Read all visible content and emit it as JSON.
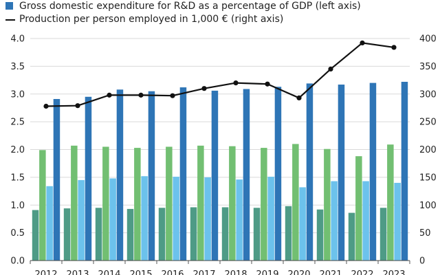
{
  "legend": [
    {
      "label": "Gross domestic expenditure for R&D as a percentage of GDP (left axis)",
      "kind": "square",
      "color": "#2e75b6"
    },
    {
      "label": "Production per person employed in 1,000 € (right axis)",
      "kind": "line",
      "color": "#111111"
    }
  ],
  "chart_data": {
    "type": "bar",
    "categories": [
      "2012",
      "2013",
      "2014",
      "2015",
      "2016",
      "2017",
      "2018",
      "2019",
      "2020",
      "2021",
      "2022",
      "2023"
    ],
    "bar_series_colors": [
      "#4e9b86",
      "#72bf72",
      "#6cc2ec",
      "#2e75b6"
    ],
    "bar_series": [
      {
        "values": [
          0.91,
          0.94,
          0.95,
          0.93,
          0.95,
          0.96,
          0.96,
          0.95,
          0.98,
          0.92,
          0.86,
          0.95
        ]
      },
      {
        "values": [
          1.99,
          2.07,
          2.05,
          2.03,
          2.05,
          2.07,
          2.06,
          2.03,
          2.1,
          2.01,
          1.88,
          2.09
        ]
      },
      {
        "values": [
          1.34,
          1.45,
          1.48,
          1.52,
          1.51,
          1.5,
          1.46,
          1.51,
          1.32,
          1.43,
          1.43,
          1.4
        ]
      },
      {
        "name": "Gross domestic expenditure for R&D as a percentage of GDP (left axis)",
        "values": [
          2.91,
          2.95,
          3.08,
          3.05,
          3.12,
          3.06,
          3.09,
          3.13,
          3.19,
          3.17,
          3.2,
          3.22
        ]
      }
    ],
    "line_series": {
      "name": "Production per person employed in 1,000 € (right axis)",
      "values": [
        278,
        279,
        298,
        298,
        297,
        310,
        320,
        318,
        293,
        345,
        392,
        384
      ]
    },
    "y_left": {
      "min": 0,
      "max": 4.0,
      "ticks": [
        "0.0",
        "0.5",
        "1.0",
        "1.5",
        "2.0",
        "2.5",
        "3.0",
        "3.5",
        "4.0"
      ]
    },
    "y_right": {
      "min": 0,
      "max": 400,
      "ticks": [
        "0",
        "50",
        "100",
        "150",
        "200",
        "250",
        "300",
        "350",
        "400"
      ]
    },
    "grid": true,
    "legend_position": "top"
  }
}
